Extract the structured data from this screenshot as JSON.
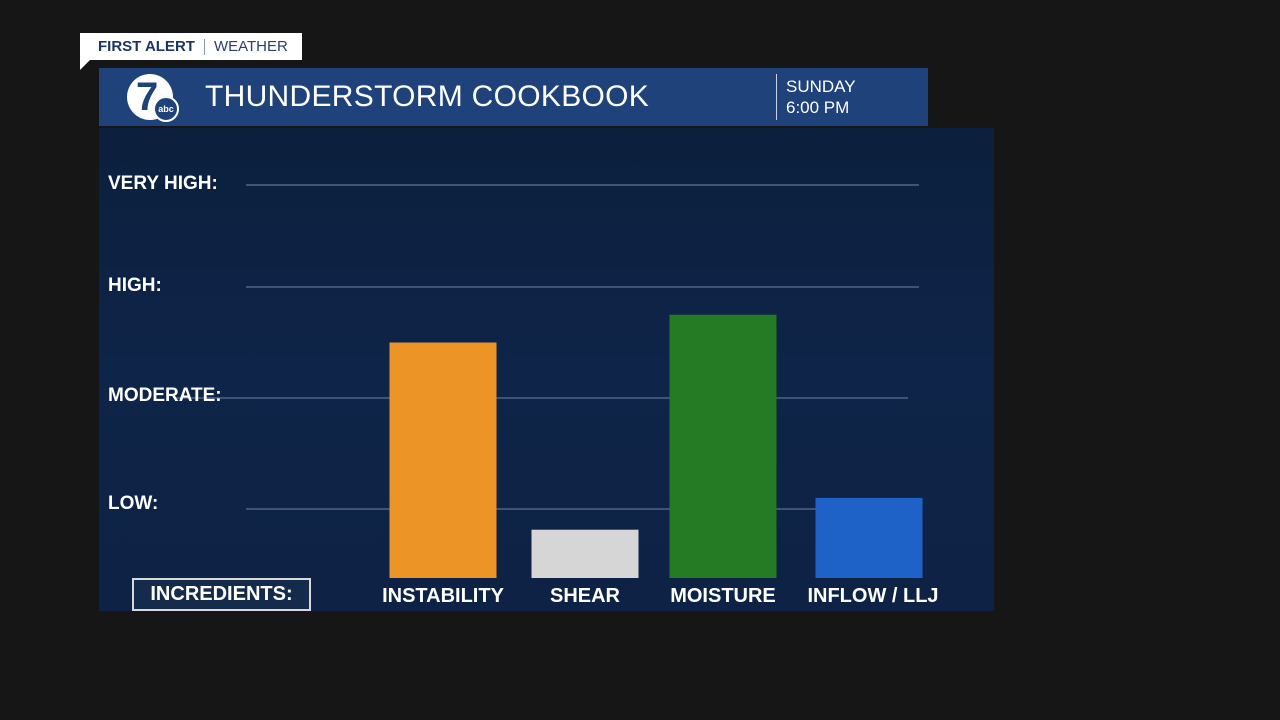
{
  "banner": {
    "first_alert": "FIRST ALERT",
    "weather": "WEATHER"
  },
  "header": {
    "logo_number": "7",
    "logo_network": "abc",
    "title": "THUNDERSTORM COOKBOOK",
    "day": "SUNDAY",
    "time": "6:00 PM"
  },
  "legend_box": "INCREDIENTS:",
  "colors": {
    "header_bg": "#1e4279",
    "panel_bg": "#0e2448",
    "gridline": "#3f5475"
  },
  "chart_data": {
    "type": "bar",
    "title": "THUNDERSTORM COOKBOOK",
    "xlabel": "",
    "ylabel": "",
    "levels": [
      {
        "name": "LOW:",
        "value": 1
      },
      {
        "name": "MODERATE:",
        "value": 2
      },
      {
        "name": "HIGH:",
        "value": 3
      },
      {
        "name": "VERY HIGH:",
        "value": 4
      }
    ],
    "ylim": [
      0,
      4
    ],
    "grid": true,
    "categories": [
      "INSTABILITY",
      "SHEAR",
      "MOISTURE",
      "INFLOW / LLJ"
    ],
    "values": [
      2.5,
      0.7,
      2.75,
      1.1
    ],
    "bar_colors": [
      "#ec9526",
      "#d6d6d6",
      "#257a24",
      "#1e62c8"
    ]
  }
}
